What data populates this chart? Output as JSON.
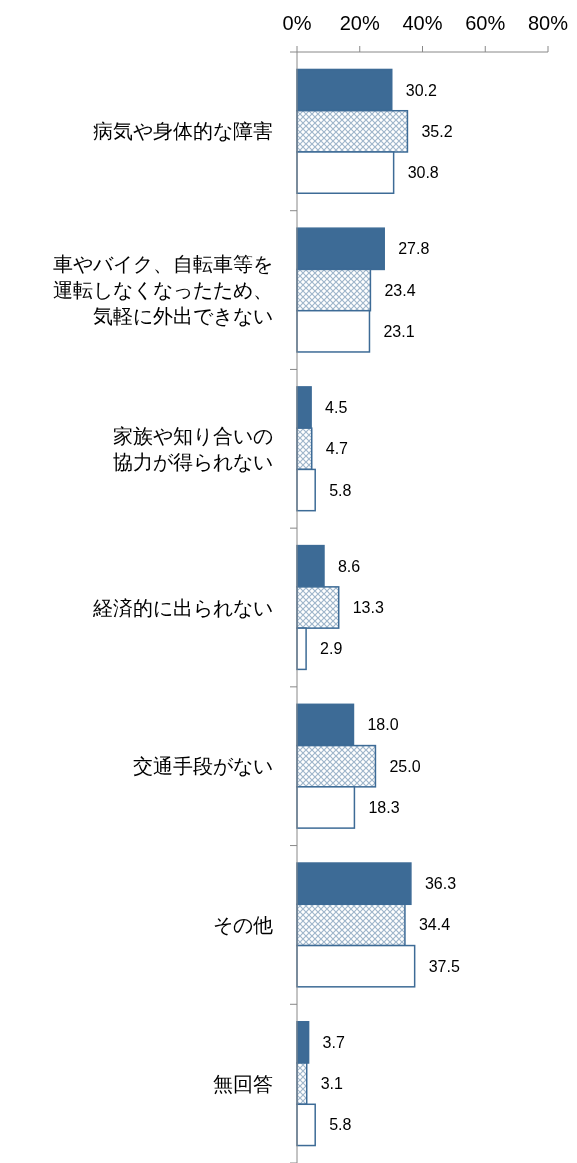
{
  "chart_data": {
    "type": "bar",
    "orientation": "horizontal",
    "categories": [
      "病気や身体的な障害",
      "車やバイク、自転車等を運転しなくなったため、気軽に外出できない",
      "家族や知り合いの協力が得られない",
      "経済的に出られない",
      "交通手段がない",
      "その他",
      "無回答"
    ],
    "series": [
      {
        "color": "#3d6b96",
        "values": [
          30.2,
          27.8,
          4.5,
          8.6,
          18.0,
          36.3,
          3.7
        ],
        "value_labels": [
          "30.2",
          "27.8",
          "4.5",
          "8.6",
          "18.0",
          "36.3",
          "3.7"
        ]
      },
      {
        "color": "#3d6b96",
        "values": [
          35.2,
          23.4,
          4.7,
          13.3,
          25.0,
          34.4,
          3.1
        ],
        "value_labels": [
          "35.2",
          "23.4",
          "4.7",
          "13.3",
          "25.0",
          "34.4",
          "3.1"
        ]
      },
      {
        "color": "#ffffff",
        "values": [
          30.8,
          23.1,
          5.8,
          2.9,
          18.3,
          37.5,
          5.8
        ],
        "value_labels": [
          "30.8",
          "23.1",
          "5.8",
          "2.9",
          "18.3",
          "37.5",
          "5.8"
        ]
      }
    ],
    "xlim": [
      0,
      80
    ],
    "xticks": [
      {
        "value": 0,
        "label": "0%"
      },
      {
        "value": 20,
        "label": "20%"
      },
      {
        "value": 40,
        "label": "40%"
      },
      {
        "value": 60,
        "label": "60%"
      },
      {
        "value": 80,
        "label": "80%"
      }
    ],
    "grid": false
  }
}
